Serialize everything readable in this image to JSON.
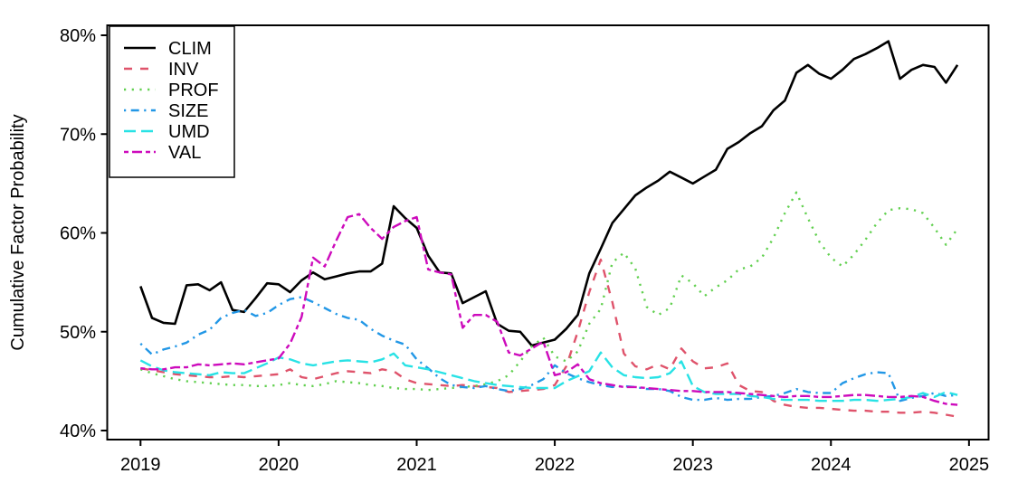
{
  "figure": {
    "background": "#ffffff",
    "axis_color": "#000000",
    "y_axis": {
      "title": "Cumulative Factor Probability",
      "tick_labels": [
        "40%",
        "50%",
        "60%",
        "70%",
        "80%"
      ],
      "tick_values": [
        40,
        50,
        60,
        70,
        80
      ]
    },
    "x_axis": {
      "tick_labels": [
        "2019",
        "2020",
        "2021",
        "2022",
        "2023",
        "2024",
        "2025"
      ],
      "tick_month_index": [
        0,
        12,
        24,
        36,
        48,
        60,
        72
      ]
    },
    "legend": {
      "position": "top-left",
      "entries": [
        "CLIM",
        "INV",
        "PROF",
        "SIZE",
        "UMD",
        "VAL"
      ]
    }
  },
  "chart_data": {
    "type": "line",
    "title": "",
    "xlabel": "",
    "ylabel": "Cumulative Factor Probability",
    "y_format": "percent",
    "ylim": [
      40,
      80
    ],
    "x_range": [
      "2019-01",
      "2024-12"
    ],
    "x_unit": "month",
    "grid": false,
    "legend_position": "top-left",
    "x_tick_labels": [
      "2019",
      "2020",
      "2021",
      "2022",
      "2023",
      "2024",
      "2025"
    ],
    "y_tick_labels": [
      "40%",
      "50%",
      "60%",
      "70%",
      "80%"
    ],
    "series": [
      {
        "name": "CLIM",
        "color": "#000000",
        "line_style": "solid",
        "values": [
          54.6,
          51.4,
          50.9,
          50.8,
          54.7,
          54.8,
          54.2,
          55.0,
          52.2,
          52.0,
          53.4,
          54.9,
          54.8,
          54.0,
          55.2,
          56.0,
          55.3,
          55.6,
          55.9,
          56.1,
          56.1,
          56.9,
          62.7,
          61.5,
          60.5,
          57.7,
          56.0,
          55.9,
          52.9,
          53.5,
          54.1,
          50.8,
          50.1,
          50.0,
          48.6,
          48.9,
          49.2,
          50.3,
          51.7,
          55.9,
          58.4,
          61.0,
          62.4,
          63.8,
          64.6,
          65.3,
          66.2,
          65.6,
          65.0,
          65.7,
          66.4,
          68.5,
          69.2,
          70.1,
          70.8,
          72.4,
          73.4,
          76.2,
          77.0,
          76.1,
          75.6,
          76.5,
          77.6,
          78.1,
          78.7,
          79.4,
          75.6,
          76.5,
          77.0,
          76.8,
          75.2,
          77.0
        ]
      },
      {
        "name": "INV",
        "color": "#DF536B",
        "line_style": "dashed",
        "values": [
          46.3,
          46.1,
          45.9,
          45.7,
          45.6,
          45.5,
          45.4,
          45.4,
          45.5,
          45.4,
          45.5,
          45.6,
          45.7,
          46.2,
          45.4,
          45.2,
          45.5,
          45.8,
          46.0,
          45.9,
          45.8,
          46.2,
          46.0,
          45.2,
          44.8,
          44.7,
          44.6,
          44.5,
          44.6,
          44.5,
          44.4,
          44.3,
          43.9,
          44.0,
          44.1,
          44.2,
          44.6,
          46.5,
          50.0,
          54.0,
          57.3,
          53.0,
          47.8,
          46.5,
          46.2,
          46.7,
          46.2,
          48.3,
          47.0,
          46.3,
          46.4,
          46.8,
          44.6,
          44.0,
          43.9,
          43.0,
          42.6,
          42.4,
          42.3,
          42.3,
          42.2,
          42.1,
          42.0,
          42.0,
          41.9,
          41.9,
          41.8,
          41.8,
          41.9,
          41.8,
          41.6,
          41.4
        ]
      },
      {
        "name": "PROF",
        "color": "#61D04F",
        "line_style": "dotted",
        "values": [
          46.2,
          45.8,
          45.5,
          45.2,
          45.0,
          44.9,
          44.8,
          44.7,
          44.6,
          44.6,
          44.5,
          44.5,
          44.6,
          44.8,
          44.6,
          44.5,
          44.7,
          45.0,
          44.9,
          44.8,
          44.6,
          44.5,
          44.3,
          44.2,
          44.2,
          44.1,
          44.2,
          44.3,
          44.4,
          44.5,
          44.7,
          45.0,
          45.6,
          47.0,
          48.5,
          49.4,
          47.5,
          47.0,
          48.0,
          50.8,
          52.3,
          57.0,
          58.0,
          56.4,
          52.5,
          51.7,
          52.4,
          55.7,
          54.9,
          53.6,
          54.5,
          55.2,
          56.3,
          56.6,
          57.5,
          59.5,
          62.0,
          64.1,
          61.5,
          59.1,
          57.5,
          56.6,
          57.8,
          59.3,
          61.0,
          62.3,
          62.5,
          62.4,
          62.0,
          60.5,
          58.8,
          60.4
        ]
      },
      {
        "name": "SIZE",
        "color": "#2297E6",
        "line_style": "dotdash",
        "values": [
          48.8,
          47.7,
          48.2,
          48.5,
          48.9,
          49.7,
          50.2,
          51.4,
          51.9,
          52.2,
          51.6,
          51.9,
          52.7,
          53.3,
          53.5,
          53.0,
          52.4,
          51.8,
          51.4,
          51.2,
          50.3,
          49.6,
          49.1,
          48.7,
          47.2,
          46.3,
          45.3,
          44.6,
          44.4,
          44.3,
          44.5,
          44.2,
          44.0,
          44.2,
          44.6,
          45.2,
          46.6,
          45.8,
          45.3,
          44.9,
          44.6,
          44.4,
          44.5,
          44.4,
          44.2,
          44.2,
          44.0,
          43.4,
          43.1,
          43.1,
          43.3,
          43.1,
          43.2,
          43.2,
          43.4,
          43.5,
          43.8,
          44.2,
          43.9,
          43.8,
          43.8,
          44.8,
          45.3,
          45.7,
          45.9,
          45.8,
          43.0,
          43.3,
          43.5,
          43.8,
          43.5,
          43.6
        ]
      },
      {
        "name": "UMD",
        "color": "#28E2E5",
        "line_style": "longdash",
        "values": [
          47.1,
          46.5,
          46.1,
          45.9,
          45.8,
          45.7,
          45.6,
          45.9,
          45.8,
          45.8,
          46.3,
          46.8,
          47.4,
          47.2,
          46.8,
          46.6,
          46.8,
          47.0,
          47.1,
          47.0,
          46.9,
          47.2,
          47.8,
          46.6,
          46.4,
          46.2,
          45.9,
          45.6,
          45.3,
          45.0,
          44.8,
          44.6,
          44.5,
          44.4,
          44.3,
          44.3,
          44.3,
          45.0,
          45.5,
          46.0,
          47.9,
          46.4,
          45.6,
          45.4,
          45.3,
          45.4,
          45.8,
          47.0,
          44.5,
          43.9,
          43.7,
          43.7,
          43.7,
          43.5,
          43.4,
          43.2,
          43.1,
          43.1,
          43.1,
          43.0,
          43.0,
          43.0,
          43.1,
          43.1,
          43.0,
          43.1,
          43.2,
          43.4,
          43.8,
          43.4,
          43.9,
          43.6
        ]
      },
      {
        "name": "VAL",
        "color": "#CD0BBC",
        "line_style": "twodash",
        "values": [
          46.3,
          46.2,
          46.2,
          46.4,
          46.4,
          46.7,
          46.6,
          46.7,
          46.8,
          46.7,
          46.9,
          47.1,
          47.3,
          48.8,
          51.5,
          57.5,
          56.6,
          59.2,
          61.6,
          61.9,
          60.5,
          59.4,
          60.6,
          61.2,
          61.6,
          56.3,
          56.0,
          55.8,
          50.4,
          51.7,
          51.7,
          51.0,
          47.9,
          47.6,
          48.3,
          49.0,
          45.6,
          45.9,
          46.7,
          45.2,
          44.8,
          44.6,
          44.4,
          44.4,
          44.3,
          44.2,
          44.1,
          44.0,
          44.0,
          43.9,
          43.9,
          43.9,
          43.8,
          43.7,
          43.6,
          43.5,
          43.4,
          43.5,
          43.5,
          43.4,
          43.4,
          43.5,
          43.6,
          43.6,
          43.5,
          43.4,
          43.4,
          43.5,
          43.4,
          43.0,
          42.7,
          42.6
        ]
      }
    ]
  }
}
